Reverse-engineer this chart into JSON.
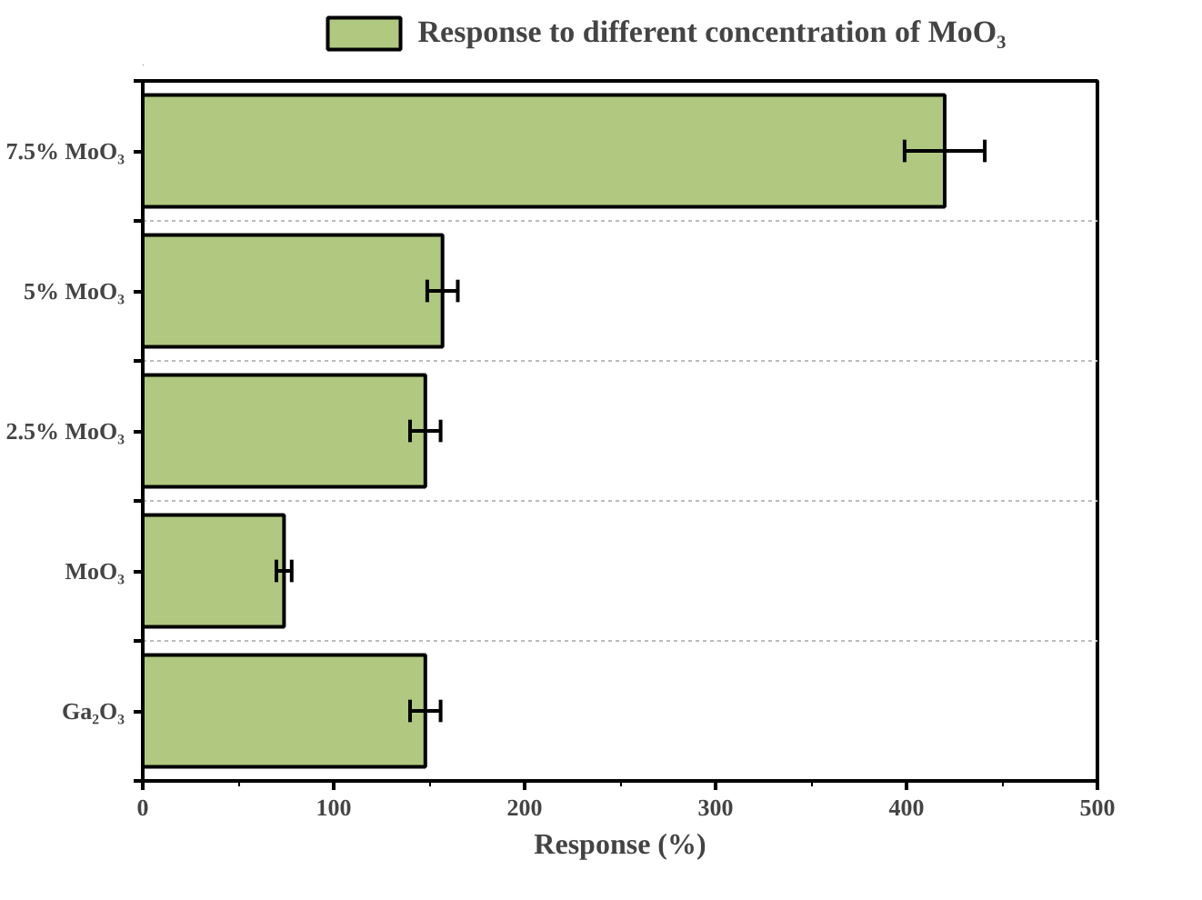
{
  "chart_data": {
    "type": "bar",
    "orientation": "horizontal",
    "categories": [
      "7.5% MoO₃",
      "5% MoO₃",
      "2.5% MoO₃",
      "MoO₃",
      "Ga₂O₃"
    ],
    "series": [
      {
        "name": "Response to different concentration of MoO₃",
        "color": "#b0c880",
        "values": [
          420,
          157,
          148,
          74,
          148
        ],
        "errors": [
          21,
          8,
          8,
          4,
          8
        ]
      }
    ],
    "xlabel": "Response (%)",
    "xlim": [
      0,
      500
    ],
    "xticks": [
      0,
      100,
      200,
      300,
      400,
      500
    ],
    "grid": "y",
    "legend": "top"
  }
}
